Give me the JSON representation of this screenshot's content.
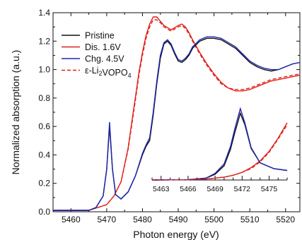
{
  "chart_data": {
    "type": "line",
    "xlabel": "Photon energy (eV)",
    "ylabel": "Normalized absorption (a.u.)",
    "xlim": [
      5455,
      5524
    ],
    "ylim": [
      0,
      1.4
    ],
    "xticks": [
      "5460",
      "5470",
      "5480",
      "5490",
      "5500",
      "5510",
      "5520"
    ],
    "yticks": [
      "0.0",
      "0.2",
      "0.4",
      "0.6",
      "0.8",
      "1.0",
      "1.2",
      "1.4"
    ],
    "legend_position": "top-left",
    "series": [
      {
        "name": "Pristine",
        "color": "#111111",
        "dash": "solid",
        "x": [
          5455,
          5465,
          5467,
          5469,
          5470,
          5470.8,
          5471.6,
          5472.5,
          5474,
          5476,
          5478,
          5480,
          5481,
          5482,
          5483,
          5484,
          5485,
          5486,
          5487,
          5488,
          5489,
          5490,
          5491,
          5492,
          5493,
          5494,
          5496,
          5498,
          5500,
          5502,
          5504,
          5506,
          5508,
          5510,
          5512,
          5514,
          5516,
          5518,
          5520,
          5522,
          5524
        ],
        "y": [
          0.01,
          0.01,
          0.03,
          0.11,
          0.3,
          0.6,
          0.3,
          0.12,
          0.09,
          0.14,
          0.25,
          0.4,
          0.46,
          0.5,
          0.68,
          0.9,
          1.08,
          1.18,
          1.2,
          1.17,
          1.11,
          1.06,
          1.05,
          1.07,
          1.1,
          1.15,
          1.2,
          1.22,
          1.22,
          1.21,
          1.18,
          1.15,
          1.1,
          1.05,
          1.02,
          1.0,
          0.99,
          1.0,
          1.02,
          1.04,
          1.05
        ]
      },
      {
        "name": "Dis. 1.6V",
        "color": "#e0201b",
        "dash": "solid",
        "x": [
          5455,
          5465,
          5470,
          5472,
          5474,
          5476,
          5477,
          5478,
          5479,
          5480,
          5481,
          5482,
          5483,
          5484,
          5485,
          5486,
          5488,
          5490,
          5491,
          5492,
          5493,
          5494,
          5496,
          5498,
          5500,
          5502,
          5504,
          5506,
          5508,
          5510,
          5512,
          5514,
          5516,
          5518,
          5520,
          5522,
          5524
        ],
        "y": [
          0.01,
          0.01,
          0.05,
          0.11,
          0.21,
          0.45,
          0.63,
          0.8,
          0.98,
          1.12,
          1.24,
          1.32,
          1.37,
          1.37,
          1.34,
          1.31,
          1.28,
          1.31,
          1.32,
          1.3,
          1.26,
          1.21,
          1.12,
          1.04,
          0.97,
          0.91,
          0.87,
          0.85,
          0.85,
          0.86,
          0.88,
          0.9,
          0.92,
          0.93,
          0.94,
          0.95,
          0.96
        ]
      },
      {
        "name": "Chg. 4.5V",
        "color": "#1f27b0",
        "dash": "solid",
        "x": [
          5455,
          5465,
          5467,
          5469,
          5470,
          5470.8,
          5471.6,
          5472.5,
          5474,
          5476,
          5478,
          5480,
          5481,
          5482,
          5483,
          5484,
          5485,
          5486,
          5487,
          5488,
          5489,
          5490,
          5491,
          5492,
          5493,
          5494,
          5496,
          5498,
          5500,
          5502,
          5504,
          5506,
          5508,
          5510,
          5512,
          5514,
          5516,
          5518,
          5520,
          5522,
          5524
        ],
        "y": [
          0.01,
          0.01,
          0.03,
          0.11,
          0.3,
          0.63,
          0.3,
          0.12,
          0.09,
          0.14,
          0.25,
          0.41,
          0.47,
          0.52,
          0.7,
          0.92,
          1.1,
          1.19,
          1.21,
          1.18,
          1.12,
          1.07,
          1.06,
          1.08,
          1.11,
          1.16,
          1.21,
          1.23,
          1.23,
          1.22,
          1.19,
          1.16,
          1.11,
          1.06,
          1.03,
          1.01,
          1.0,
          1.0,
          1.02,
          1.04,
          1.05
        ]
      },
      {
        "name": "ε-Li2VOPO4",
        "color": "#e0201b",
        "dash": "dashed",
        "x": [
          5455,
          5465,
          5470,
          5472,
          5474,
          5476,
          5477,
          5478,
          5479,
          5480,
          5481,
          5482,
          5483,
          5484,
          5485,
          5486,
          5488,
          5490,
          5491,
          5492,
          5493,
          5494,
          5496,
          5498,
          5500,
          5502,
          5504,
          5506,
          5508,
          5510,
          5512,
          5514,
          5516,
          5518,
          5520,
          5522,
          5524
        ],
        "y": [
          0.01,
          0.01,
          0.05,
          0.11,
          0.21,
          0.44,
          0.61,
          0.78,
          0.96,
          1.1,
          1.22,
          1.3,
          1.35,
          1.35,
          1.33,
          1.3,
          1.27,
          1.3,
          1.31,
          1.29,
          1.25,
          1.2,
          1.11,
          1.03,
          0.96,
          0.9,
          0.87,
          0.86,
          0.86,
          0.87,
          0.89,
          0.91,
          0.93,
          0.94,
          0.95,
          0.96,
          0.97
        ]
      }
    ],
    "inset": {
      "xlim": [
        5462,
        5477
      ],
      "xticks": [
        "5463",
        "5466",
        "5469",
        "5472",
        "5475"
      ],
      "series": [
        {
          "name": "Pristine",
          "x": [
            5462,
            5466,
            5468,
            5469,
            5470,
            5470.7,
            5471.2,
            5471.8,
            5472.3,
            5473,
            5474,
            5475.5,
            5477
          ],
          "y": [
            0.0,
            0.003,
            0.02,
            0.06,
            0.15,
            0.32,
            0.5,
            0.7,
            0.58,
            0.33,
            0.18,
            0.12,
            0.1
          ]
        },
        {
          "name": "Dis. 1.6V",
          "x": [
            5462,
            5466,
            5468,
            5470,
            5471,
            5472,
            5473,
            5474,
            5475,
            5476,
            5477
          ],
          "y": [
            0.0,
            0.003,
            0.01,
            0.03,
            0.05,
            0.08,
            0.13,
            0.2,
            0.3,
            0.44,
            0.6
          ]
        },
        {
          "name": "Chg. 4.5V",
          "x": [
            5462,
            5466,
            5468,
            5469,
            5470,
            5470.7,
            5471.2,
            5471.8,
            5472.3,
            5473,
            5474,
            5475.5,
            5477
          ],
          "y": [
            0.0,
            0.003,
            0.02,
            0.07,
            0.17,
            0.35,
            0.54,
            0.75,
            0.6,
            0.34,
            0.18,
            0.12,
            0.1
          ]
        },
        {
          "name": "ε-Li2VOPO4",
          "x": [
            5462,
            5466,
            5468,
            5470,
            5471,
            5472,
            5473,
            5474,
            5475,
            5476,
            5477
          ],
          "y": [
            0.0,
            0.003,
            0.01,
            0.03,
            0.05,
            0.08,
            0.12,
            0.19,
            0.29,
            0.43,
            0.58
          ]
        }
      ]
    }
  }
}
